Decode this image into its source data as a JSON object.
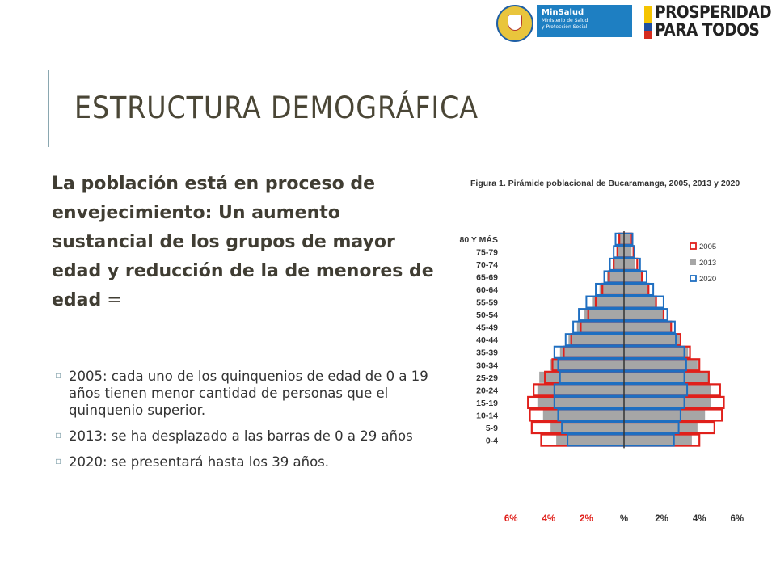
{
  "slide": {
    "title": "ESTRUCTURA DEMOGRÁFICA",
    "lead": "La población está en proceso de envejecimiento: Un aumento sustancial de los grupos de mayor edad y reducción de la de menores de edad",
    "lead_suffix": " =",
    "bullets": [
      "2005: cada uno de los quinquenios de edad de 0 a 19 años tienen menor cantidad de personas que el quinquenio superior.",
      "2013: se ha desplazado a las barras de 0 a 29 años",
      "2020: se presentará hasta los 39 años."
    ],
    "bullet_marker": "▫"
  },
  "logos": {
    "minsalud_name": "MinSalud",
    "minsalud_line1": "Ministerio de Salud",
    "minsalud_line2": "y Protección Social",
    "prosperidad_line1": "PROSPERIDAD",
    "prosperidad_line2": "PARA TODOS",
    "flag_colors": [
      "#f5c400",
      "#1f4fa0",
      "#d52b1e"
    ]
  },
  "chart_data": {
    "type": "bar",
    "orientation": "horizontal-pyramid",
    "title": "Figura 1. Pirámide poblacional de Bucaramanga, 2005, 2013 y 2020",
    "categories": [
      "80 Y MÁS",
      "75-79",
      "70-74",
      "65-69",
      "60-64",
      "55-59",
      "50-54",
      "45-49",
      "40-44",
      "35-39",
      "30-34",
      "25-29",
      "20-24",
      "15-19",
      "10-14",
      "5-9",
      "0-4"
    ],
    "xlim": [
      -6,
      6
    ],
    "x_ticks": [
      "6%",
      "4%",
      "2%",
      "%",
      "2%",
      "4%",
      "6%"
    ],
    "legend_position": "top-right",
    "series": [
      {
        "name": "2005",
        "color": "#e0201b",
        "style": "outline",
        "left": [
          0.25,
          0.35,
          0.55,
          0.8,
          1.15,
          1.5,
          1.9,
          2.3,
          2.8,
          3.2,
          3.8,
          4.2,
          4.8,
          5.1,
          5.0,
          4.9,
          4.4
        ],
        "right": [
          0.4,
          0.5,
          0.7,
          0.95,
          1.3,
          1.7,
          2.1,
          2.5,
          3.0,
          3.5,
          4.0,
          4.5,
          5.1,
          5.3,
          5.2,
          4.8,
          4.0
        ]
      },
      {
        "name": "2013",
        "color": "#a6a6a6",
        "style": "filled",
        "left": [
          0.3,
          0.4,
          0.6,
          0.9,
          1.3,
          1.7,
          2.1,
          2.5,
          2.95,
          3.4,
          3.9,
          4.5,
          4.6,
          4.6,
          4.3,
          3.9,
          3.6
        ]
      },
      {
        "name": "2020",
        "color": "#1f6fc1",
        "style": "outline",
        "left": [
          0.45,
          0.55,
          0.75,
          1.05,
          1.5,
          2.0,
          2.4,
          2.7,
          3.1,
          3.7,
          3.5,
          3.4,
          3.7,
          3.7,
          3.5,
          3.3,
          3.0
        ],
        "right": [
          0.45,
          0.55,
          0.85,
          1.2,
          1.55,
          2.1,
          2.3,
          2.7,
          2.75,
          3.2,
          3.3,
          3.2,
          3.35,
          3.2,
          3.0,
          2.9,
          2.65
        ]
      }
    ]
  }
}
